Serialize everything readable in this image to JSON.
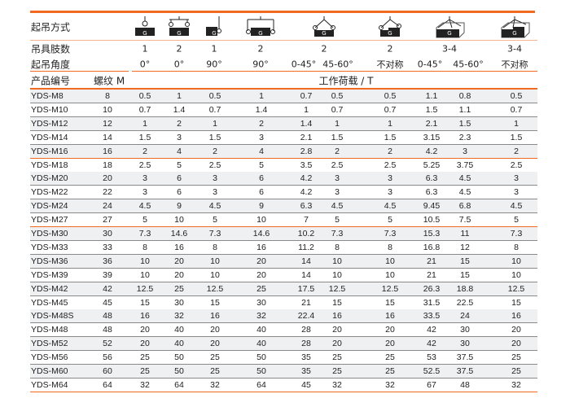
{
  "header": {
    "method_label": "起吊方式",
    "legs_label": "吊具肢数",
    "angle_label": "起吊角度",
    "product_label": "产品编号",
    "thread_label": "螺纹 M",
    "load_label": "工作荷载 / T",
    "icons": [
      "single-vertical-lift-icon",
      "double-vertical-lift-icon",
      "single-side-lift-icon",
      "double-side-lift-icon",
      "two-leg-angled-lift-icon",
      "two-leg-asymmetric-lift-icon",
      "multi-leg-angled-lift-icon",
      "multi-leg-asymmetric-lift-icon"
    ],
    "icon_letter": "G",
    "legs": [
      "1",
      "2",
      "1",
      "2",
      "2",
      "2",
      "3-4",
      "3-4"
    ],
    "angles": [
      "0°",
      "0°",
      "90°",
      "90°",
      "0-45°",
      "45-60°",
      "不对称",
      "0-45°",
      "45-60°",
      "不对称"
    ]
  },
  "colors": {
    "accent": "#f26a21",
    "row_alt": "#eef0f2",
    "divider": "#8a8a8a"
  },
  "rows": [
    [
      "YDS-M8",
      "8",
      "0.5",
      "1",
      "0.5",
      "1",
      "0.7",
      "0.5",
      "0.5",
      "1.1",
      "0.8",
      "0.5"
    ],
    [
      "YDS-M10",
      "10",
      "0.7",
      "1.4",
      "0.7",
      "1.4",
      "1",
      "0.7",
      "0.7",
      "1.5",
      "1.1",
      "0.7"
    ],
    [
      "YDS-M12",
      "12",
      "1",
      "2",
      "1",
      "2",
      "1.4",
      "1",
      "1",
      "2.1",
      "1.5",
      "1"
    ],
    [
      "YDS-M14",
      "14",
      "1.5",
      "3",
      "1.5",
      "3",
      "2.1",
      "1.5",
      "1.5",
      "3.15",
      "2.3",
      "1.5"
    ],
    [
      "YDS-M16",
      "16",
      "2",
      "4",
      "2",
      "4",
      "2.8",
      "2",
      "2",
      "4.2",
      "3",
      "2"
    ],
    [
      "YDS-M18",
      "18",
      "2.5",
      "5",
      "2.5",
      "5",
      "3.5",
      "2.5",
      "2.5",
      "5.25",
      "3.75",
      "2.5"
    ],
    [
      "YDS-M20",
      "20",
      "3",
      "6",
      "3",
      "6",
      "4.2",
      "3",
      "3",
      "6.3",
      "4.5",
      "3"
    ],
    [
      "YDS-M22",
      "22",
      "3",
      "6",
      "3",
      "6",
      "4.2",
      "3",
      "3",
      "6.3",
      "4.5",
      "3"
    ],
    [
      "YDS-M24",
      "24",
      "4.5",
      "9",
      "4.5",
      "9",
      "6.3",
      "4.5",
      "4.5",
      "9.45",
      "6.8",
      "4.5"
    ],
    [
      "YDS-M27",
      "27",
      "5",
      "10",
      "5",
      "10",
      "7",
      "5",
      "5",
      "10.5",
      "7.5",
      "5"
    ],
    [
      "YDS-M30",
      "30",
      "7.3",
      "14.6",
      "7.3",
      "14.6",
      "10.2",
      "7.3",
      "7.3",
      "15.3",
      "11",
      "7.3"
    ],
    [
      "YDS-M33",
      "33",
      "8",
      "16",
      "8",
      "16",
      "11.2",
      "8",
      "8",
      "16.8",
      "12",
      "8"
    ],
    [
      "YDS-M36",
      "36",
      "10",
      "20",
      "10",
      "20",
      "14",
      "10",
      "10",
      "21",
      "15",
      "10"
    ],
    [
      "YDS-M39",
      "39",
      "10",
      "20",
      "10",
      "20",
      "14",
      "10",
      "10",
      "21",
      "15",
      "10"
    ],
    [
      "YDS-M42",
      "42",
      "12.5",
      "25",
      "12.5",
      "25",
      "17.5",
      "12.5",
      "12.5",
      "26.3",
      "18.8",
      "12.5"
    ],
    [
      "YDS-M45",
      "45",
      "15",
      "30",
      "15",
      "30",
      "21",
      "15",
      "15",
      "31.5",
      "22.5",
      "15"
    ],
    [
      "YDS-M48S",
      "48",
      "16",
      "32",
      "16",
      "32",
      "22.4",
      "16",
      "16",
      "33.5",
      "24",
      "16"
    ],
    [
      "YDS-M48",
      "48",
      "20",
      "40",
      "20",
      "40",
      "28",
      "20",
      "20",
      "42",
      "30",
      "20"
    ],
    [
      "YDS-M52",
      "52",
      "20",
      "40",
      "20",
      "40",
      "28",
      "20",
      "20",
      "42",
      "30",
      "20"
    ],
    [
      "YDS-M56",
      "56",
      "25",
      "50",
      "25",
      "50",
      "35",
      "25",
      "25",
      "53",
      "37.5",
      "25"
    ],
    [
      "YDS-M60",
      "60",
      "25",
      "50",
      "25",
      "50",
      "35",
      "25",
      "25",
      "52.5",
      "37.5",
      "25"
    ],
    [
      "YDS-M64",
      "64",
      "32",
      "64",
      "32",
      "64",
      "45",
      "32",
      "32",
      "67",
      "48",
      "32"
    ]
  ]
}
